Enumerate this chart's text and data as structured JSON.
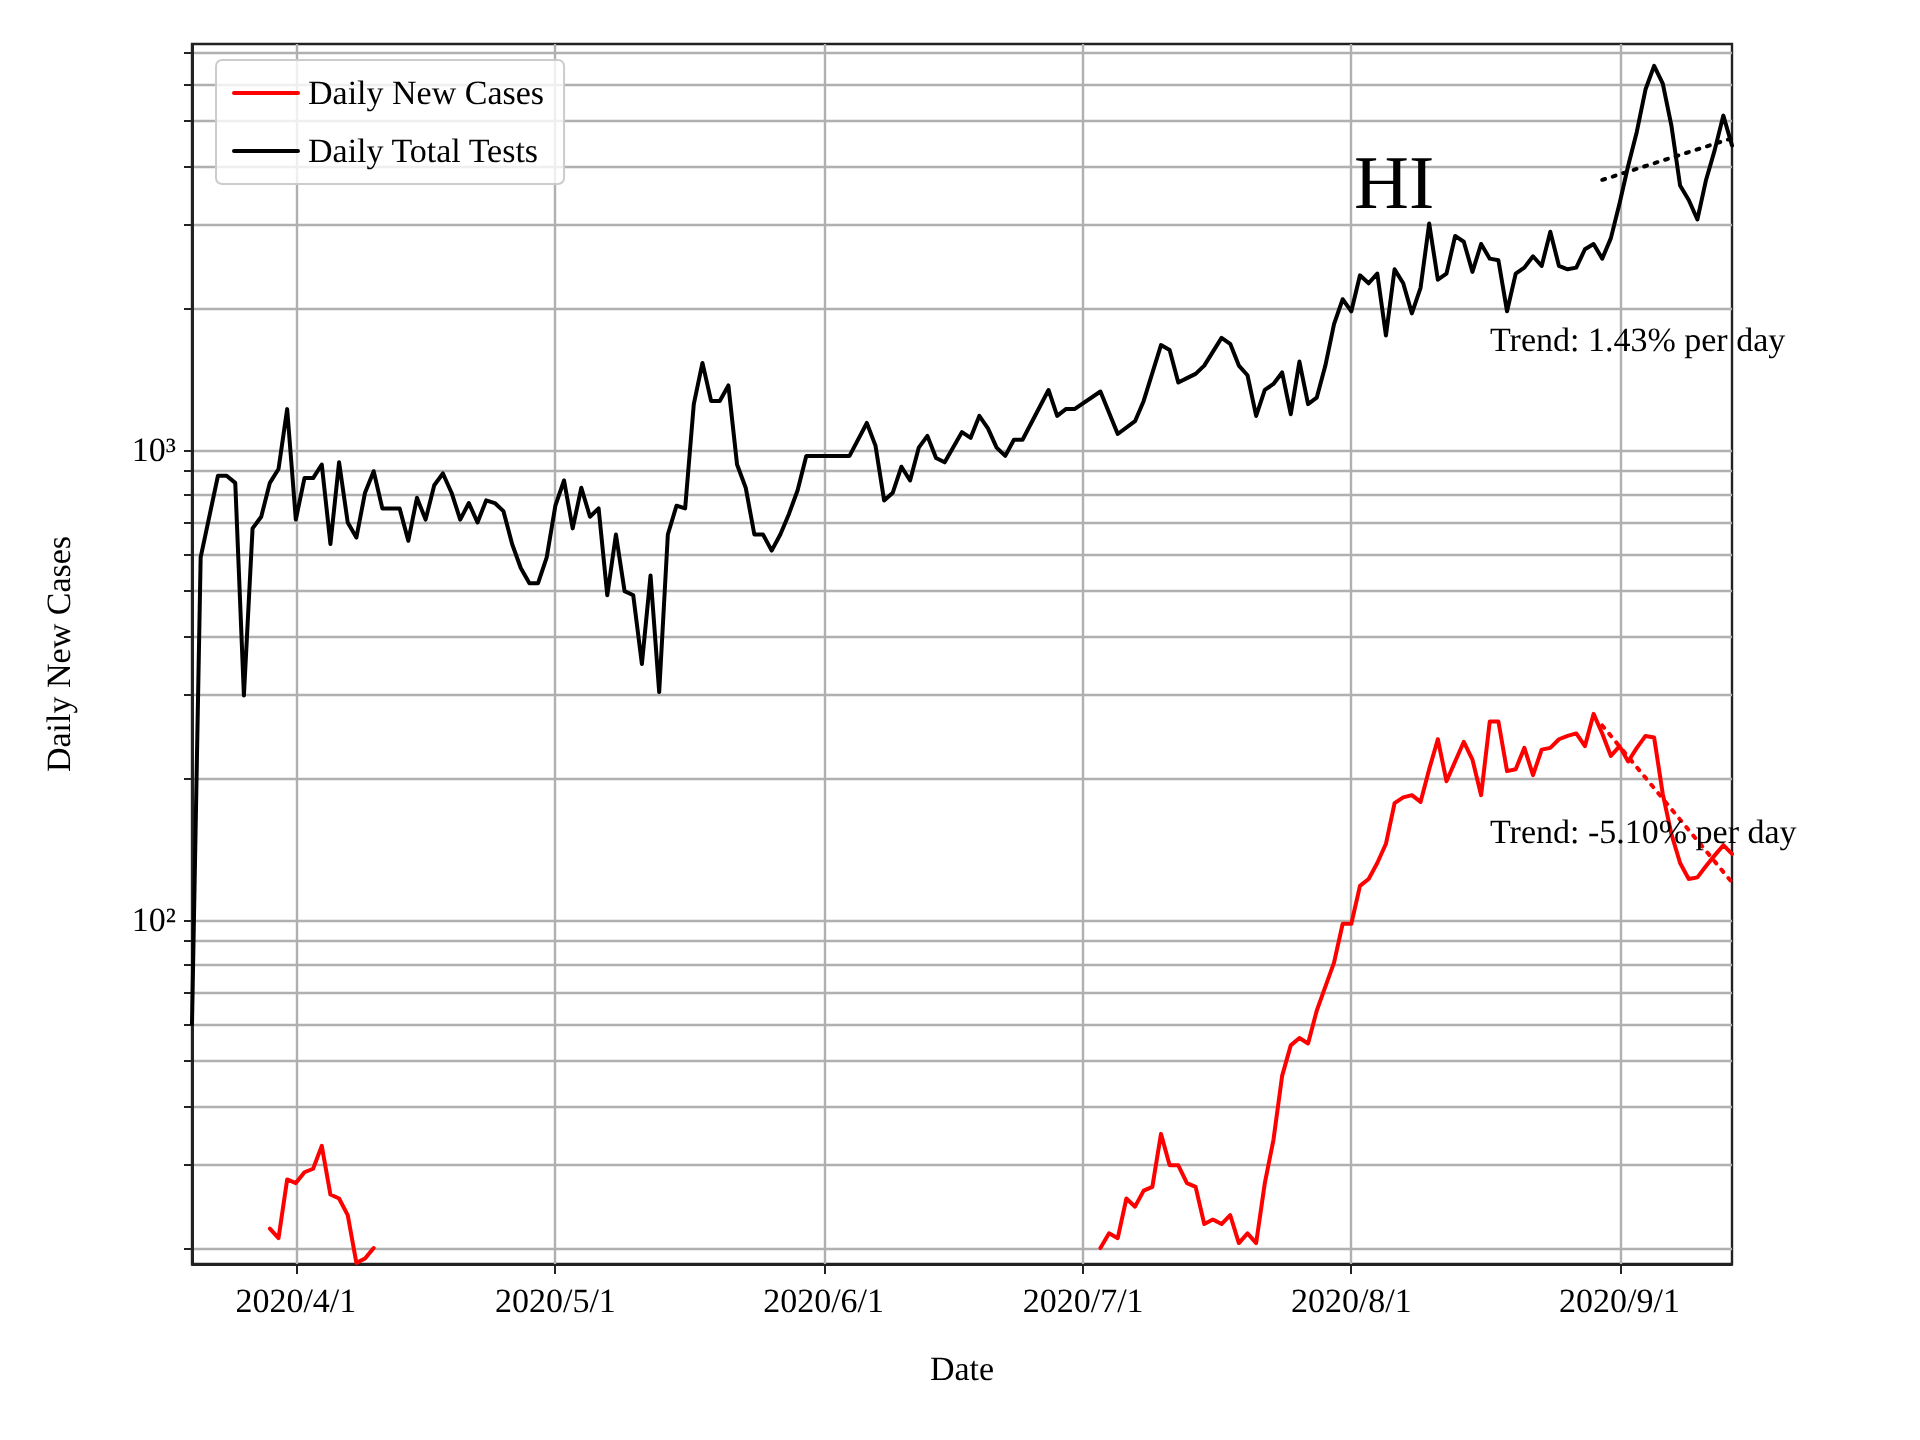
{
  "chart_data": {
    "type": "line",
    "title": "HI",
    "xlabel": "Date",
    "ylabel": "Daily New Cases",
    "xlim": [
      "2020-03-20",
      "2020-09-14"
    ],
    "xticks": [
      {
        "value": "2020-04-01",
        "label": "2020/4/1"
      },
      {
        "value": "2020-05-01",
        "label": "2020/5/1"
      },
      {
        "value": "2020-06-01",
        "label": "2020/6/1"
      },
      {
        "value": "2020-07-01",
        "label": "2020/7/1"
      },
      {
        "value": "2020-08-01",
        "label": "2020/8/1"
      },
      {
        "value": "2020-09-01",
        "label": "2020/9/1"
      }
    ],
    "ylim": [
      18.5,
      7300
    ],
    "log": true,
    "yticks": [
      {
        "value": 20,
        "label": null
      },
      {
        "value": 30,
        "label": null
      },
      {
        "value": 40,
        "label": null
      },
      {
        "value": 50,
        "label": null
      },
      {
        "value": 60,
        "label": null
      },
      {
        "value": 70,
        "label": null
      },
      {
        "value": 80,
        "label": null
      },
      {
        "value": 90,
        "label": null
      },
      {
        "value": 100,
        "label": "10²"
      },
      {
        "value": 200,
        "label": null
      },
      {
        "value": 300,
        "label": null
      },
      {
        "value": 400,
        "label": null
      },
      {
        "value": 500,
        "label": null
      },
      {
        "value": 600,
        "label": null
      },
      {
        "value": 700,
        "label": null
      },
      {
        "value": 800,
        "label": null
      },
      {
        "value": 900,
        "label": null
      },
      {
        "value": 1000,
        "label": "10³"
      },
      {
        "value": 2000,
        "label": null
      },
      {
        "value": 3000,
        "label": null
      },
      {
        "value": 4000,
        "label": null
      },
      {
        "value": 5000,
        "label": null
      },
      {
        "value": 6000,
        "label": null
      },
      {
        "value": 7000,
        "label": null
      }
    ],
    "grid": true,
    "legend": "top left",
    "marker": "none",
    "annotations": [
      "Trend: 1.43% per day",
      "Trend: -5.10% per day"
    ],
    "series": [
      {
        "name": "Daily New Cases",
        "color": "#ff0000",
        "line_style": "solid",
        "x": [
          "2020-03-29",
          "2020-03-30",
          "2020-03-31",
          "2020-04-01",
          "2020-04-02",
          "2020-04-03",
          "2020-04-04",
          "2020-04-05",
          "2020-04-06",
          "2020-04-07",
          "2020-04-08",
          "2020-04-09",
          "2020-04-10",
          "2020-04-11",
          "2020-07-03",
          "2020-07-04",
          "2020-07-05",
          "2020-07-06",
          "2020-07-07",
          "2020-07-08",
          "2020-07-09",
          "2020-07-10",
          "2020-07-11",
          "2020-07-12",
          "2020-07-13",
          "2020-07-14",
          "2020-07-15",
          "2020-07-16",
          "2020-07-17",
          "2020-07-18",
          "2020-07-19",
          "2020-07-20",
          "2020-07-21",
          "2020-07-22",
          "2020-07-23",
          "2020-07-24",
          "2020-07-25",
          "2020-07-26",
          "2020-07-27",
          "2020-07-28",
          "2020-07-29",
          "2020-07-30",
          "2020-07-31",
          "2020-08-01",
          "2020-08-02",
          "2020-08-03",
          "2020-08-04",
          "2020-08-05",
          "2020-08-06",
          "2020-08-07",
          "2020-08-08",
          "2020-08-09",
          "2020-08-10",
          "2020-08-11",
          "2020-08-12",
          "2020-08-13",
          "2020-08-14",
          "2020-08-15",
          "2020-08-16",
          "2020-08-17",
          "2020-08-18",
          "2020-08-19",
          "2020-08-20",
          "2020-08-21",
          "2020-08-22",
          "2020-08-23",
          "2020-08-24",
          "2020-08-25",
          "2020-08-26",
          "2020-08-27",
          "2020-08-28",
          "2020-08-29",
          "2020-08-30",
          "2020-08-31",
          "2020-09-01",
          "2020-09-02",
          "2020-09-03",
          "2020-09-04",
          "2020-09-05",
          "2020-09-06",
          "2020-09-07",
          "2020-09-08",
          "2020-09-09",
          "2020-09-10",
          "2020-09-11",
          "2020-09-12",
          "2020-09-13",
          "2020-09-14"
        ],
        "values": [
          22,
          21,
          28,
          27.5,
          29,
          29.5,
          33,
          26,
          25.5,
          23.5,
          18.6,
          19,
          20,
          null,
          20,
          21.5,
          21,
          25.5,
          24.5,
          26.5,
          27,
          35,
          30,
          30,
          27.5,
          27,
          22.5,
          23,
          22.5,
          23.5,
          20.5,
          21.5,
          20.5,
          27.5,
          34,
          46.5,
          54,
          56,
          54.5,
          64,
          72,
          81,
          98,
          98,
          118,
          122,
          132,
          145,
          177,
          182,
          184,
          178,
          209,
          242,
          197,
          217,
          239,
          219,
          184,
          264,
          264,
          207,
          209,
          232,
          203,
          230,
          232,
          242,
          246,
          249,
          234,
          274,
          249,
          223,
          234,
          217,
          232,
          246,
          244,
          185,
          152,
          132,
          122,
          123,
          130,
          137,
          144,
          138
        ]
      },
      {
        "name": "Daily Total Tests",
        "color": "#000000",
        "line_style": "solid",
        "x": [
          "2020-03-20",
          "2020-03-21",
          "2020-03-23",
          "2020-03-24",
          "2020-03-25",
          "2020-03-26",
          "2020-03-27",
          "2020-03-28",
          "2020-03-29",
          "2020-03-30",
          "2020-03-31",
          "2020-04-01",
          "2020-04-02",
          "2020-04-03",
          "2020-04-04",
          "2020-04-05",
          "2020-04-06",
          "2020-04-07",
          "2020-04-08",
          "2020-04-09",
          "2020-04-10",
          "2020-04-11",
          "2020-04-13",
          "2020-04-14",
          "2020-04-15",
          "2020-04-16",
          "2020-04-17",
          "2020-04-18",
          "2020-04-19",
          "2020-04-20",
          "2020-04-21",
          "2020-04-22",
          "2020-04-23",
          "2020-04-24",
          "2020-04-25",
          "2020-04-26",
          "2020-04-27",
          "2020-04-28",
          "2020-04-29",
          "2020-04-30",
          "2020-05-01",
          "2020-05-02",
          "2020-05-03",
          "2020-05-04",
          "2020-05-05",
          "2020-05-06",
          "2020-05-07",
          "2020-05-08",
          "2020-05-09",
          "2020-05-10",
          "2020-05-11",
          "2020-05-12",
          "2020-05-13",
          "2020-05-14",
          "2020-05-15",
          "2020-05-16",
          "2020-05-17",
          "2020-05-18",
          "2020-05-19",
          "2020-05-20",
          "2020-05-21",
          "2020-05-22",
          "2020-05-23",
          "2020-05-24",
          "2020-05-25",
          "2020-05-26",
          "2020-05-27",
          "2020-05-28",
          "2020-05-29",
          "2020-05-30",
          "2020-06-04",
          "2020-06-06",
          "2020-06-07",
          "2020-06-08",
          "2020-06-09",
          "2020-06-10",
          "2020-06-11",
          "2020-06-12",
          "2020-06-13",
          "2020-06-14",
          "2020-06-15",
          "2020-06-17",
          "2020-06-18",
          "2020-06-19",
          "2020-06-20",
          "2020-06-21",
          "2020-06-22",
          "2020-06-23",
          "2020-06-24",
          "2020-06-27",
          "2020-06-28",
          "2020-06-29",
          "2020-06-30",
          "2020-07-03",
          "2020-07-05",
          "2020-07-07",
          "2020-07-08",
          "2020-07-10",
          "2020-07-11",
          "2020-07-12",
          "2020-07-13",
          "2020-07-14",
          "2020-07-15",
          "2020-07-17",
          "2020-07-18",
          "2020-07-19",
          "2020-07-20",
          "2020-07-21",
          "2020-07-22",
          "2020-07-23",
          "2020-07-24",
          "2020-07-25",
          "2020-07-26",
          "2020-07-27",
          "2020-07-28",
          "2020-07-29",
          "2020-07-30",
          "2020-07-31",
          "2020-08-01",
          "2020-08-02",
          "2020-08-03",
          "2020-08-04",
          "2020-08-05",
          "2020-08-06",
          "2020-08-07",
          "2020-08-08",
          "2020-08-09",
          "2020-08-10",
          "2020-08-11",
          "2020-08-12",
          "2020-08-13",
          "2020-08-14",
          "2020-08-15",
          "2020-08-16",
          "2020-08-17",
          "2020-08-18",
          "2020-08-19",
          "2020-08-20",
          "2020-08-21",
          "2020-08-22",
          "2020-08-23",
          "2020-08-24",
          "2020-08-25",
          "2020-08-26",
          "2020-08-27",
          "2020-08-28",
          "2020-08-29",
          "2020-08-30",
          "2020-08-31",
          "2020-09-01",
          "2020-09-02",
          "2020-09-03",
          "2020-09-04",
          "2020-09-05",
          "2020-09-06",
          "2020-09-07",
          "2020-09-08",
          "2020-09-09",
          "2020-09-10",
          "2020-09-11",
          "2020-09-12",
          "2020-09-13",
          "2020-09-14"
        ],
        "values": [
          60,
          590,
          880,
          880,
          850,
          300,
          680,
          720,
          850,
          910,
          1220,
          710,
          870,
          870,
          930,
          630,
          940,
          700,
          650,
          810,
          900,
          750,
          750,
          640,
          790,
          710,
          840,
          890,
          810,
          710,
          770,
          700,
          780,
          770,
          740,
          630,
          560,
          520,
          520,
          590,
          760,
          860,
          680,
          830,
          720,
          750,
          490,
          660,
          500,
          490,
          350,
          540,
          305,
          660,
          760,
          750,
          1250,
          1530,
          1270,
          1270,
          1370,
          930,
          830,
          660,
          660,
          610,
          660,
          730,
          820,
          970,
          970,
          1140,
          1020,
          780,
          810,
          920,
          860,
          1010,
          1070,
          960,
          940,
          1090,
          1060,
          1180,
          1110,
          1010,
          970,
          1050,
          1050,
          1340,
          1180,
          1220,
          1220,
          1330,
          1080,
          1150,
          1270,
          1670,
          1630,
          1390,
          1420,
          1450,
          1510,
          1730,
          1680,
          1510,
          1440,
          1180,
          1340,
          1380,
          1460,
          1190,
          1540,
          1250,
          1290,
          1510,
          1850,
          2090,
          1970,
          2350,
          2260,
          2370,
          1750,
          2420,
          2260,
          1950,
          2210,
          3030,
          2300,
          2370,
          2850,
          2770,
          2390,
          2740,
          2550,
          2530,
          1970,
          2370,
          2440,
          2580,
          2460,
          2910,
          2460,
          2420,
          2440,
          2670,
          2740,
          2550,
          2820,
          3340,
          4020,
          4750,
          5840,
          6560,
          6010,
          4890,
          3650,
          3400,
          3090,
          3750,
          4340,
          5140,
          4440
        ]
      },
      {
        "color": "#000000",
        "line_style": "dotted",
        "x": [
          "2020-08-30",
          "2020-09-14"
        ],
        "values": [
          3750,
          4600
        ]
      },
      {
        "color": "#ff0000",
        "line_style": "dotted",
        "x": [
          "2020-08-30",
          "2020-09-14"
        ],
        "values": [
          259,
          120
        ]
      }
    ]
  }
}
